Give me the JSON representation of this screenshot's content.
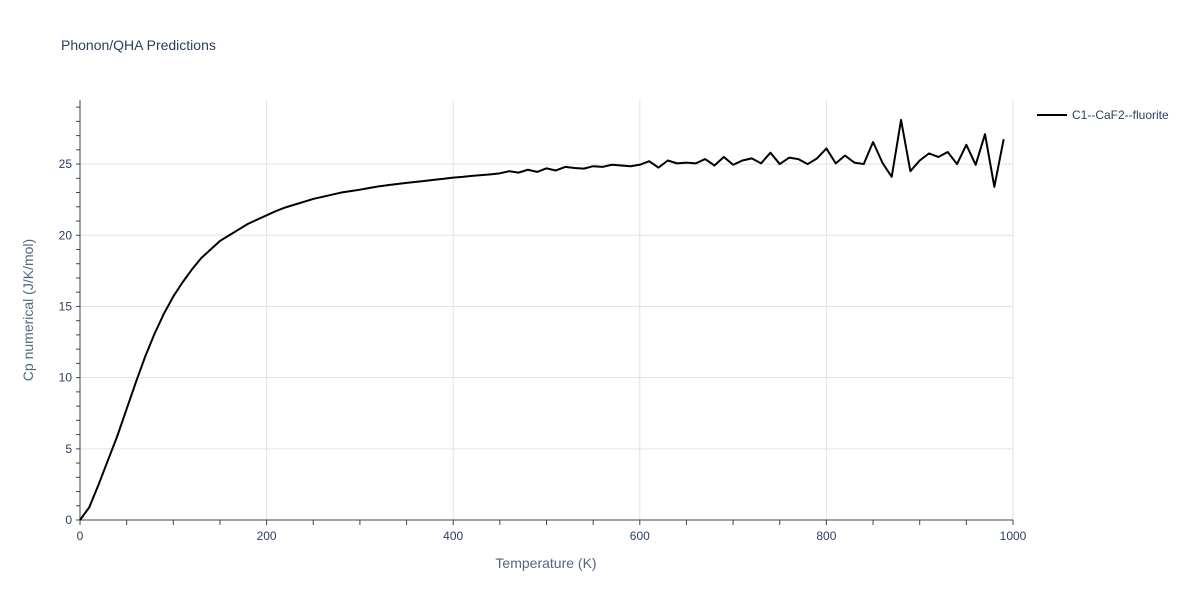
{
  "chart_data": {
    "type": "line",
    "title": "Phonon/QHA Predictions",
    "xlabel": "Temperature (K)",
    "ylabel": "Cp numerical (J/K/mol)",
    "xlim": [
      0,
      1000
    ],
    "ylim": [
      0,
      29.5
    ],
    "x_ticks": [
      0,
      200,
      400,
      600,
      800,
      1000
    ],
    "y_ticks": [
      0,
      5,
      10,
      15,
      20,
      25
    ],
    "grid": true,
    "legend_position": "top-right",
    "series": [
      {
        "name": "C1--CaF2--fluorite",
        "color": "#000000",
        "x": [
          0,
          10,
          20,
          30,
          40,
          50,
          60,
          70,
          80,
          90,
          100,
          110,
          120,
          130,
          140,
          150,
          160,
          170,
          180,
          190,
          200,
          210,
          220,
          230,
          240,
          250,
          260,
          270,
          280,
          290,
          300,
          310,
          320,
          330,
          340,
          350,
          360,
          370,
          380,
          390,
          400,
          410,
          420,
          430,
          440,
          450,
          460,
          470,
          480,
          490,
          500,
          510,
          520,
          530,
          540,
          550,
          560,
          570,
          580,
          590,
          600,
          610,
          620,
          630,
          640,
          650,
          660,
          670,
          680,
          690,
          700,
          710,
          720,
          730,
          740,
          750,
          760,
          770,
          780,
          790,
          800,
          810,
          820,
          830,
          840,
          850,
          860,
          870,
          880,
          890,
          900,
          910,
          920,
          930,
          940,
          950,
          960,
          970,
          980,
          990
        ],
        "y": [
          0,
          0.9,
          2.5,
          4.2,
          5.9,
          7.8,
          9.7,
          11.5,
          13.1,
          14.5,
          15.7,
          16.7,
          17.6,
          18.4,
          19.0,
          19.6,
          20.0,
          20.4,
          20.8,
          21.1,
          21.4,
          21.7,
          21.95,
          22.15,
          22.35,
          22.55,
          22.7,
          22.85,
          23.0,
          23.1,
          23.2,
          23.32,
          23.43,
          23.52,
          23.6,
          23.68,
          23.75,
          23.82,
          23.9,
          23.97,
          24.05,
          24.1,
          24.17,
          24.22,
          24.28,
          24.35,
          24.5,
          24.4,
          24.6,
          24.45,
          24.7,
          24.55,
          24.8,
          24.72,
          24.68,
          24.85,
          24.8,
          24.95,
          24.9,
          24.85,
          24.95,
          25.2,
          24.75,
          25.25,
          25.05,
          25.1,
          25.05,
          25.35,
          24.9,
          25.5,
          24.95,
          25.25,
          25.4,
          25.05,
          25.8,
          25.0,
          25.45,
          25.35,
          25.0,
          25.4,
          26.1,
          25.05,
          25.6,
          25.1,
          25.0,
          26.55,
          25.1,
          24.1,
          28.1,
          24.5,
          25.25,
          25.75,
          25.5,
          25.85,
          25.0,
          26.35,
          24.95,
          27.1,
          23.4,
          26.75
        ]
      }
    ]
  }
}
